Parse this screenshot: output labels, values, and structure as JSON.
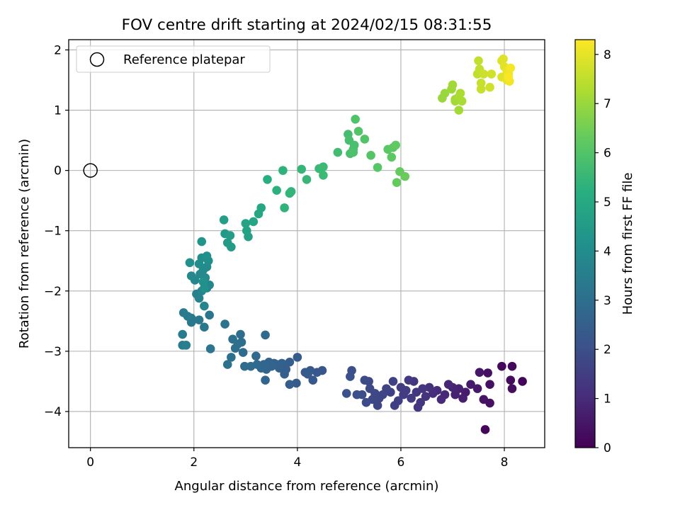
{
  "chart_data": {
    "type": "scatter",
    "title": "FOV centre drift starting at 2024/02/15 08:31:55",
    "xlabel": "Angular distance from reference (arcmin)",
    "ylabel": "Rotation from reference (arcmin)",
    "xlim": [
      -0.42,
      8.78
    ],
    "ylim": [
      -4.6,
      2.17
    ],
    "xticks": [
      0,
      2,
      4,
      6,
      8
    ],
    "yticks": [
      -4,
      -3,
      -2,
      -1,
      0,
      1,
      2
    ],
    "grid": true,
    "legend": {
      "placement": "top-left",
      "entries": [
        "Reference platepar"
      ]
    },
    "reference_point": {
      "x": 0.0,
      "y": 0.0
    },
    "colorbar": {
      "label": "Hours from first FF file",
      "range": [
        0,
        8.3
      ],
      "ticks": [
        0,
        1,
        2,
        3,
        4,
        5,
        6,
        7,
        8
      ],
      "colormap": "viridis"
    },
    "series": [
      {
        "points": [
          {
            "x": 7.63,
            "y": -4.3,
            "t": 0.15
          },
          {
            "x": 7.95,
            "y": -3.25,
            "t": 0.2
          },
          {
            "x": 8.15,
            "y": -3.25,
            "t": 0.2
          },
          {
            "x": 8.35,
            "y": -3.5,
            "t": 0.1
          },
          {
            "x": 8.12,
            "y": -3.48,
            "t": 0.25
          },
          {
            "x": 8.15,
            "y": -3.62,
            "t": 0.3
          },
          {
            "x": 7.68,
            "y": -3.36,
            "t": 0.35
          },
          {
            "x": 7.72,
            "y": -3.55,
            "t": 0.35
          },
          {
            "x": 7.52,
            "y": -3.35,
            "t": 0.5
          },
          {
            "x": 7.6,
            "y": -3.8,
            "t": 0.45
          },
          {
            "x": 7.72,
            "y": -3.86,
            "t": 0.4
          },
          {
            "x": 7.48,
            "y": -3.62,
            "t": 0.55
          },
          {
            "x": 7.35,
            "y": -3.55,
            "t": 0.6
          },
          {
            "x": 7.25,
            "y": -3.68,
            "t": 0.65
          },
          {
            "x": 7.2,
            "y": -3.78,
            "t": 0.7
          },
          {
            "x": 7.12,
            "y": -3.62,
            "t": 0.75
          },
          {
            "x": 7.05,
            "y": -3.72,
            "t": 0.8
          },
          {
            "x": 7.0,
            "y": -3.6,
            "t": 0.85
          },
          {
            "x": 6.92,
            "y": -3.55,
            "t": 0.9
          },
          {
            "x": 6.85,
            "y": -3.72,
            "t": 0.95
          },
          {
            "x": 6.78,
            "y": -3.8,
            "t": 1.0
          },
          {
            "x": 6.7,
            "y": -3.65,
            "t": 1.05
          },
          {
            "x": 6.62,
            "y": -3.7,
            "t": 1.1
          },
          {
            "x": 6.55,
            "y": -3.6,
            "t": 1.15
          },
          {
            "x": 6.48,
            "y": -3.75,
            "t": 1.2
          },
          {
            "x": 6.42,
            "y": -3.62,
            "t": 1.25
          },
          {
            "x": 6.38,
            "y": -3.85,
            "t": 1.3
          },
          {
            "x": 6.33,
            "y": -3.93,
            "t": 1.3
          },
          {
            "x": 6.3,
            "y": -3.68,
            "t": 1.35
          },
          {
            "x": 6.25,
            "y": -3.5,
            "t": 1.35
          },
          {
            "x": 6.2,
            "y": -3.78,
            "t": 1.4
          },
          {
            "x": 6.15,
            "y": -3.48,
            "t": 1.4
          },
          {
            "x": 6.1,
            "y": -3.65,
            "t": 1.45
          },
          {
            "x": 6.05,
            "y": -3.72,
            "t": 1.5
          },
          {
            "x": 6.0,
            "y": -3.6,
            "t": 1.5
          },
          {
            "x": 5.95,
            "y": -3.82,
            "t": 1.55
          },
          {
            "x": 5.88,
            "y": -3.9,
            "t": 1.55
          },
          {
            "x": 5.85,
            "y": -3.5,
            "t": 1.6
          },
          {
            "x": 5.8,
            "y": -3.68,
            "t": 1.6
          },
          {
            "x": 5.72,
            "y": -3.62,
            "t": 1.65
          },
          {
            "x": 5.65,
            "y": -3.72,
            "t": 1.7
          },
          {
            "x": 5.58,
            "y": -3.78,
            "t": 1.75
          },
          {
            "x": 5.55,
            "y": -3.9,
            "t": 1.75
          },
          {
            "x": 5.5,
            "y": -3.7,
            "t": 1.8
          },
          {
            "x": 5.45,
            "y": -3.8,
            "t": 1.8
          },
          {
            "x": 5.4,
            "y": -3.62,
            "t": 1.85
          },
          {
            "x": 5.38,
            "y": -3.5,
            "t": 1.85
          },
          {
            "x": 5.33,
            "y": -3.85,
            "t": 1.9
          },
          {
            "x": 5.3,
            "y": -3.48,
            "t": 1.9
          },
          {
            "x": 5.25,
            "y": -3.72,
            "t": 1.95
          },
          {
            "x": 5.15,
            "y": -3.72,
            "t": 2.0
          },
          {
            "x": 5.05,
            "y": -3.32,
            "t": 2.0
          },
          {
            "x": 5.02,
            "y": -3.42,
            "t": 2.05
          },
          {
            "x": 4.95,
            "y": -3.7,
            "t": 2.05
          },
          {
            "x": 4.48,
            "y": -3.32,
            "t": 2.2
          },
          {
            "x": 4.38,
            "y": -3.35,
            "t": 2.25
          },
          {
            "x": 4.3,
            "y": -3.48,
            "t": 2.25
          },
          {
            "x": 4.25,
            "y": -3.32,
            "t": 2.3
          },
          {
            "x": 4.2,
            "y": -3.38,
            "t": 2.3
          },
          {
            "x": 4.15,
            "y": -3.35,
            "t": 2.35
          },
          {
            "x": 4.0,
            "y": -3.1,
            "t": 2.4
          },
          {
            "x": 3.98,
            "y": -3.53,
            "t": 2.4
          },
          {
            "x": 3.85,
            "y": -3.55,
            "t": 2.45
          },
          {
            "x": 3.85,
            "y": -3.18,
            "t": 2.45
          },
          {
            "x": 3.78,
            "y": -3.3,
            "t": 2.5
          },
          {
            "x": 3.75,
            "y": -3.38,
            "t": 2.5
          },
          {
            "x": 3.7,
            "y": -3.2,
            "t": 2.55
          },
          {
            "x": 3.65,
            "y": -3.28,
            "t": 2.55
          },
          {
            "x": 3.6,
            "y": -3.22,
            "t": 2.6
          },
          {
            "x": 3.55,
            "y": -3.2,
            "t": 2.6
          },
          {
            "x": 3.5,
            "y": -3.25,
            "t": 2.65
          },
          {
            "x": 3.45,
            "y": -3.18,
            "t": 2.65
          },
          {
            "x": 3.4,
            "y": -3.3,
            "t": 2.7
          },
          {
            "x": 3.38,
            "y": -3.48,
            "t": 2.7
          },
          {
            "x": 3.35,
            "y": -3.22,
            "t": 2.75
          },
          {
            "x": 3.3,
            "y": -3.28,
            "t": 2.75
          },
          {
            "x": 3.22,
            "y": -3.22,
            "t": 2.8
          },
          {
            "x": 3.2,
            "y": -3.08,
            "t": 2.8
          },
          {
            "x": 3.1,
            "y": -3.25,
            "t": 2.85
          },
          {
            "x": 3.38,
            "y": -2.73,
            "t": 2.85
          },
          {
            "x": 2.98,
            "y": -3.25,
            "t": 2.9
          },
          {
            "x": 2.95,
            "y": -3.02,
            "t": 2.9
          },
          {
            "x": 2.92,
            "y": -2.85,
            "t": 2.95
          },
          {
            "x": 2.9,
            "y": -2.72,
            "t": 2.95
          },
          {
            "x": 2.85,
            "y": -2.88,
            "t": 3.0
          },
          {
            "x": 2.8,
            "y": -2.95,
            "t": 3.0
          },
          {
            "x": 2.75,
            "y": -2.8,
            "t": 3.05
          },
          {
            "x": 2.72,
            "y": -3.1,
            "t": 3.05
          },
          {
            "x": 2.65,
            "y": -3.22,
            "t": 3.1
          },
          {
            "x": 2.6,
            "y": -2.55,
            "t": 3.15
          },
          {
            "x": 2.32,
            "y": -2.96,
            "t": 3.2
          },
          {
            "x": 2.3,
            "y": -2.4,
            "t": 3.25
          },
          {
            "x": 2.2,
            "y": -2.6,
            "t": 3.3
          },
          {
            "x": 2.1,
            "y": -2.48,
            "t": 3.3
          },
          {
            "x": 1.95,
            "y": -2.45,
            "t": 3.35
          },
          {
            "x": 1.95,
            "y": -2.52,
            "t": 3.35
          },
          {
            "x": 1.88,
            "y": -2.42,
            "t": 3.4
          },
          {
            "x": 1.8,
            "y": -2.36,
            "t": 3.4
          },
          {
            "x": 1.78,
            "y": -2.72,
            "t": 3.45
          },
          {
            "x": 1.78,
            "y": -2.9,
            "t": 3.45
          },
          {
            "x": 1.85,
            "y": -2.9,
            "t": 3.5
          },
          {
            "x": 2.05,
            "y": -2.05,
            "t": 3.6
          },
          {
            "x": 2.1,
            "y": -2.12,
            "t": 3.65
          },
          {
            "x": 2.15,
            "y": -2.0,
            "t": 3.7
          },
          {
            "x": 2.2,
            "y": -2.25,
            "t": 3.7
          },
          {
            "x": 2.25,
            "y": -1.95,
            "t": 3.75
          },
          {
            "x": 2.3,
            "y": -1.9,
            "t": 3.8
          },
          {
            "x": 2.02,
            "y": -1.82,
            "t": 3.8
          },
          {
            "x": 1.95,
            "y": -1.75,
            "t": 3.85
          },
          {
            "x": 2.12,
            "y": -1.72,
            "t": 3.85
          },
          {
            "x": 2.18,
            "y": -1.65,
            "t": 3.9
          },
          {
            "x": 2.22,
            "y": -1.78,
            "t": 3.9
          },
          {
            "x": 2.25,
            "y": -1.6,
            "t": 3.95
          },
          {
            "x": 2.1,
            "y": -1.55,
            "t": 4.0
          },
          {
            "x": 2.28,
            "y": -1.5,
            "t": 4.0
          },
          {
            "x": 2.15,
            "y": -1.45,
            "t": 4.05
          },
          {
            "x": 2.25,
            "y": -1.42,
            "t": 4.1
          },
          {
            "x": 1.92,
            "y": -1.53,
            "t": 4.1
          },
          {
            "x": 2.18,
            "y": -1.85,
            "t": 4.15
          },
          {
            "x": 2.2,
            "y": -1.95,
            "t": 4.15
          },
          {
            "x": 2.15,
            "y": -1.18,
            "t": 4.25
          },
          {
            "x": 2.6,
            "y": -1.05,
            "t": 4.45
          },
          {
            "x": 2.65,
            "y": -1.2,
            "t": 4.5
          },
          {
            "x": 2.72,
            "y": -1.27,
            "t": 4.5
          },
          {
            "x": 2.7,
            "y": -1.08,
            "t": 4.55
          },
          {
            "x": 2.58,
            "y": -0.82,
            "t": 4.6
          },
          {
            "x": 3.05,
            "y": -1.1,
            "t": 4.7
          },
          {
            "x": 3.02,
            "y": -1.0,
            "t": 4.75
          },
          {
            "x": 3.0,
            "y": -0.88,
            "t": 4.8
          },
          {
            "x": 3.15,
            "y": -0.85,
            "t": 4.85
          },
          {
            "x": 3.25,
            "y": -0.72,
            "t": 4.9
          },
          {
            "x": 3.3,
            "y": -0.62,
            "t": 4.95
          },
          {
            "x": 3.42,
            "y": -0.15,
            "t": 5.2
          },
          {
            "x": 3.6,
            "y": -0.33,
            "t": 5.25
          },
          {
            "x": 3.72,
            "y": -0.0,
            "t": 5.3
          },
          {
            "x": 3.75,
            "y": -0.62,
            "t": 5.35
          },
          {
            "x": 3.85,
            "y": -0.38,
            "t": 5.4
          },
          {
            "x": 3.88,
            "y": -0.35,
            "t": 5.4
          },
          {
            "x": 4.08,
            "y": 0.02,
            "t": 5.45
          },
          {
            "x": 4.18,
            "y": -0.15,
            "t": 5.5
          },
          {
            "x": 4.42,
            "y": 0.03,
            "t": 5.55
          },
          {
            "x": 4.5,
            "y": 0.06,
            "t": 5.6
          },
          {
            "x": 4.5,
            "y": -0.08,
            "t": 5.6
          },
          {
            "x": 4.78,
            "y": 0.3,
            "t": 5.7
          },
          {
            "x": 4.98,
            "y": 0.6,
            "t": 5.75
          },
          {
            "x": 5.0,
            "y": 0.5,
            "t": 5.8
          },
          {
            "x": 5.02,
            "y": 0.28,
            "t": 5.8
          },
          {
            "x": 5.08,
            "y": 0.35,
            "t": 5.85
          },
          {
            "x": 5.1,
            "y": 0.42,
            "t": 5.85
          },
          {
            "x": 5.08,
            "y": 0.3,
            "t": 5.9
          },
          {
            "x": 5.12,
            "y": 0.85,
            "t": 5.95
          },
          {
            "x": 5.18,
            "y": 0.65,
            "t": 6.0
          },
          {
            "x": 5.3,
            "y": 0.52,
            "t": 6.0
          },
          {
            "x": 5.42,
            "y": 0.25,
            "t": 6.05
          },
          {
            "x": 5.55,
            "y": 0.05,
            "t": 6.1
          },
          {
            "x": 5.75,
            "y": 0.35,
            "t": 6.15
          },
          {
            "x": 5.82,
            "y": 0.22,
            "t": 6.2
          },
          {
            "x": 5.85,
            "y": 0.38,
            "t": 6.2
          },
          {
            "x": 5.9,
            "y": 0.42,
            "t": 6.25
          },
          {
            "x": 5.92,
            "y": -0.2,
            "t": 6.3
          },
          {
            "x": 5.98,
            "y": -0.02,
            "t": 6.3
          },
          {
            "x": 6.08,
            "y": -0.1,
            "t": 6.35
          },
          {
            "x": 6.8,
            "y": 1.2,
            "t": 7.0
          },
          {
            "x": 6.85,
            "y": 1.28,
            "t": 7.0
          },
          {
            "x": 6.98,
            "y": 1.35,
            "t": 7.05
          },
          {
            "x": 7.0,
            "y": 1.42,
            "t": 7.1
          },
          {
            "x": 7.05,
            "y": 1.18,
            "t": 7.1
          },
          {
            "x": 7.05,
            "y": 1.15,
            "t": 7.15
          },
          {
            "x": 7.12,
            "y": 1.0,
            "t": 7.15
          },
          {
            "x": 7.12,
            "y": 1.22,
            "t": 7.2
          },
          {
            "x": 7.18,
            "y": 1.15,
            "t": 7.2
          },
          {
            "x": 7.15,
            "y": 1.28,
            "t": 7.25
          },
          {
            "x": 7.48,
            "y": 1.6,
            "t": 7.5
          },
          {
            "x": 7.5,
            "y": 1.82,
            "t": 7.55
          },
          {
            "x": 7.52,
            "y": 1.68,
            "t": 7.55
          },
          {
            "x": 7.55,
            "y": 1.45,
            "t": 7.6
          },
          {
            "x": 7.55,
            "y": 1.35,
            "t": 7.6
          },
          {
            "x": 7.6,
            "y": 1.6,
            "t": 7.65
          },
          {
            "x": 7.72,
            "y": 1.38,
            "t": 7.7
          },
          {
            "x": 7.75,
            "y": 1.6,
            "t": 7.7
          },
          {
            "x": 7.95,
            "y": 1.82,
            "t": 7.85
          },
          {
            "x": 7.98,
            "y": 1.85,
            "t": 7.9
          },
          {
            "x": 7.95,
            "y": 1.55,
            "t": 7.9
          },
          {
            "x": 8.0,
            "y": 1.72,
            "t": 7.95
          },
          {
            "x": 8.05,
            "y": 1.5,
            "t": 8.0
          },
          {
            "x": 8.05,
            "y": 1.65,
            "t": 8.05
          },
          {
            "x": 8.08,
            "y": 1.6,
            "t": 8.1
          },
          {
            "x": 8.1,
            "y": 1.48,
            "t": 8.15
          },
          {
            "x": 8.12,
            "y": 1.7,
            "t": 8.2
          },
          {
            "x": 8.08,
            "y": 1.55,
            "t": 8.25
          }
        ]
      }
    ]
  }
}
